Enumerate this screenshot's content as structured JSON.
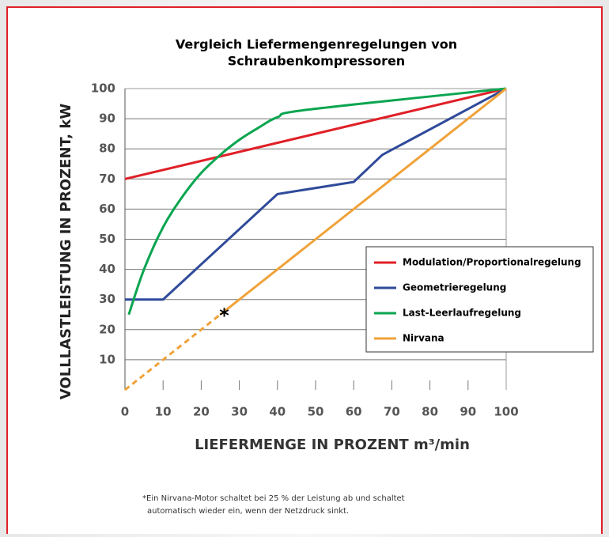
{
  "chart_data": {
    "type": "line",
    "title": [
      "Vergleich Liefermengenregelungen von",
      "Schraubenkompressoren"
    ],
    "y_label": "VOLLLASTLEISTUNG IN PROZENT, kW",
    "x_label": "LIEFERMENGE IN PROZENT m³/min",
    "xlim": [
      0,
      100
    ],
    "ylim": [
      0,
      100
    ],
    "xticks": [
      0,
      10,
      20,
      30,
      40,
      50,
      60,
      70,
      80,
      90,
      100
    ],
    "yticks": [
      10,
      20,
      30,
      40,
      50,
      60,
      70,
      80,
      90,
      100
    ],
    "grid": true,
    "legend": "right",
    "series": [
      {
        "name": "Modulation/Proportionalregelung",
        "color": "#e02027",
        "x": [
          0,
          100
        ],
        "values": [
          70,
          100
        ]
      },
      {
        "name": "Geometrieregelung",
        "color": "#2f4a9a",
        "x": [
          0,
          10,
          40,
          60,
          67.5,
          100
        ],
        "values": [
          30,
          30,
          65,
          69,
          78,
          100
        ]
      },
      {
        "name": "Last-Leerlaufregelung",
        "color": "#0aa550",
        "x": [
          1,
          5,
          10,
          15,
          20,
          25,
          30,
          35,
          40,
          48,
          100
        ],
        "values": [
          25,
          40,
          54,
          64,
          72,
          78,
          83,
          87,
          90.5,
          93,
          100
        ]
      },
      {
        "name": "Nirvana",
        "color": "#f0a23a",
        "x": [
          0,
          25,
          100
        ],
        "values": [
          0,
          25,
          100
        ],
        "line_styles": [
          "dashed",
          "solid"
        ]
      }
    ],
    "annotations": [
      {
        "text": "*",
        "x": 25,
        "y": 25
      }
    ],
    "footnote": [
      "*Ein Nirvana-Motor schaltet bei 25 % der Leistung ab und schaltet",
      "automatisch wieder ein, wenn der Netzdruck sinkt."
    ]
  }
}
